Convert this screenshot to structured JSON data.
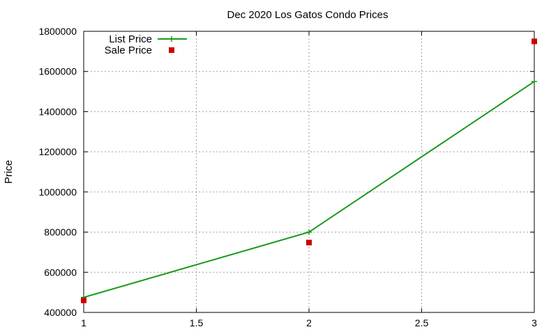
{
  "chart_data": {
    "type": "line",
    "title": "Dec 2020 Los Gatos Condo Prices",
    "xlabel": "",
    "ylabel": "Price",
    "xlim": [
      1,
      3
    ],
    "ylim": [
      400000,
      1800000
    ],
    "x_ticks": [
      "1",
      "1.5",
      "2",
      "2.5",
      "3"
    ],
    "x_tick_values": [
      1,
      1.5,
      2,
      2.5,
      3
    ],
    "y_ticks": [
      "400000",
      "600000",
      "800000",
      "1000000",
      "1200000",
      "1400000",
      "1600000",
      "1800000"
    ],
    "y_tick_values": [
      400000,
      600000,
      800000,
      1000000,
      1200000,
      1400000,
      1600000,
      1800000
    ],
    "grid": true,
    "legend_position": "top-left",
    "series": [
      {
        "name": "List Price",
        "style": "linespoints",
        "marker": "plus",
        "color": "#1a9a1a",
        "x": [
          1,
          2,
          3
        ],
        "y": [
          475000,
          800000,
          1550000
        ]
      },
      {
        "name": "Sale Price",
        "style": "points",
        "marker": "square",
        "color": "#cc0000",
        "x": [
          1,
          2,
          3
        ],
        "y": [
          460000,
          748000,
          1750000
        ]
      }
    ]
  }
}
